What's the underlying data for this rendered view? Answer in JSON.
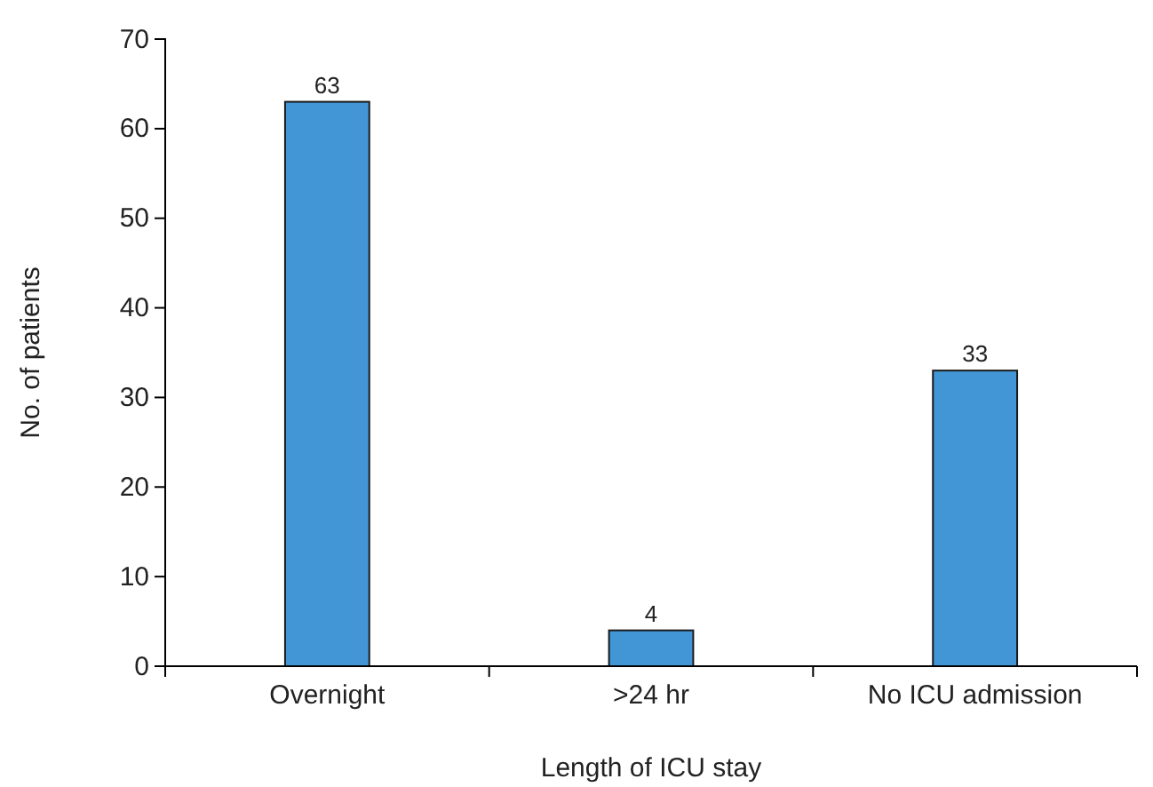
{
  "chart_data": {
    "type": "bar",
    "xlabel": "Length of ICU stay",
    "ylabel": "No. of patients",
    "categories": [
      "Overnight",
      ">24 hr",
      "No ICU admission"
    ],
    "values": [
      63,
      4,
      33
    ],
    "color": "#4396d6",
    "ylim": [
      0,
      70
    ],
    "yticks": [
      0,
      10,
      20,
      30,
      40,
      50,
      60,
      70
    ],
    "grid": false,
    "data_labels": true
  }
}
